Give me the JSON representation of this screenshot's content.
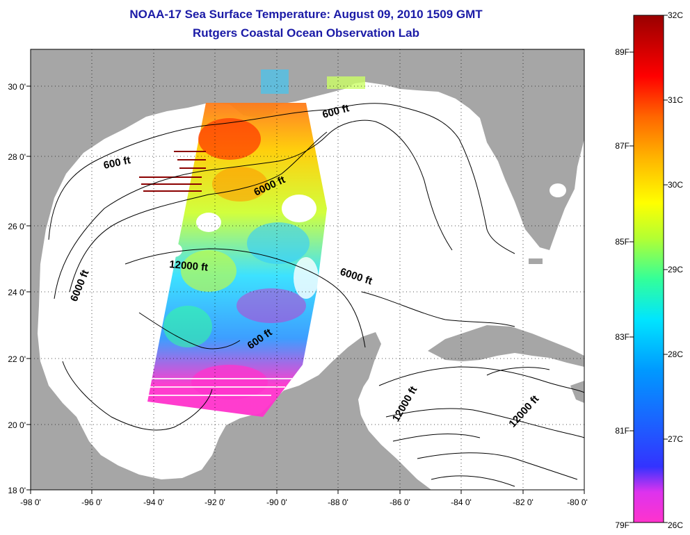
{
  "header": {
    "title": "NOAA-17 Sea Surface Temperature:  August 09, 2010 1509 GMT",
    "subtitle": "Rutgers Coastal Ocean Observation Lab"
  },
  "map": {
    "lon_range": [
      -98,
      -80
    ],
    "lat_range": [
      18,
      31
    ],
    "x_ticks": [
      "-98 0'",
      "-96 0'",
      "-94 0'",
      "-92 0'",
      "-90 0'",
      "-88 0'",
      "-86 0'",
      "-84 0'",
      "-82 0'",
      "-80 0'"
    ],
    "y_ticks": [
      "18 0'",
      "20 0'",
      "22 0'",
      "24 0'",
      "26 0'",
      "28 0'",
      "30 0'"
    ],
    "contour_labels": [
      "600 ft",
      "600 ft",
      "600 ft",
      "6000 ft",
      "6000 ft",
      "6000 ft",
      "12000 ft",
      "12000 ft",
      "12000 ft"
    ],
    "colors": {
      "land": "#a6a6a6",
      "ocean": "#ffffff",
      "contour": "#000000"
    }
  },
  "colorbar": {
    "c_labels": [
      "32C",
      "31C",
      "30C",
      "29C",
      "28C",
      "27C",
      "26C"
    ],
    "f_labels": [
      "89F",
      "87F",
      "85F",
      "83F",
      "81F",
      "79F"
    ],
    "gradient": [
      "#ff33cc",
      "#cc33ff",
      "#3333ff",
      "#0099ff",
      "#00e5ff",
      "#33ff99",
      "#b3ff33",
      "#ffff00",
      "#ffb300",
      "#ff6600",
      "#ff0000",
      "#990000"
    ]
  }
}
